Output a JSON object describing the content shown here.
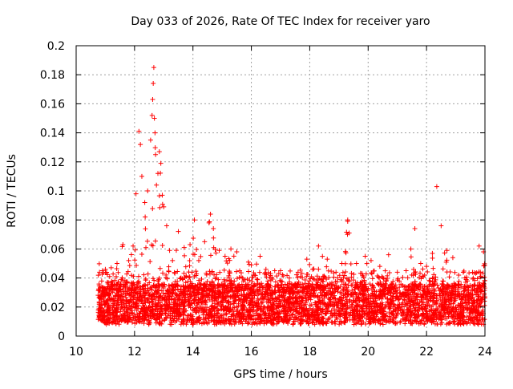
{
  "chart_data": {
    "type": "scatter",
    "title": "Day 033 of 2026, Rate Of TEC Index for receiver yaro",
    "xlabel": "GPS time / hours",
    "ylabel": "ROTI / TECUs",
    "xlim": [
      10,
      24
    ],
    "ylim": [
      0,
      0.2
    ],
    "x_ticks": [
      10,
      12,
      14,
      16,
      18,
      20,
      22,
      24
    ],
    "y_ticks": [
      0,
      0.02,
      0.04,
      0.06,
      0.08,
      0.1,
      0.12,
      0.14,
      0.16,
      0.18,
      0.2
    ],
    "x_tick_labels": [
      "10",
      "12",
      "14",
      "16",
      "18",
      "20",
      "22",
      "24"
    ],
    "y_tick_labels": [
      "0",
      "0.02",
      "0.04",
      "0.06",
      "0.08",
      "0.1",
      "0.12",
      "0.14",
      "0.16",
      "0.18",
      "0.2"
    ],
    "grid": true,
    "marker": "+",
    "color": "#ff0000",
    "data_x_range": [
      10.75,
      24.0
    ],
    "series": [
      {
        "name": "ROTI",
        "x": [
          10.8,
          10.9,
          11.0,
          11.2,
          11.4,
          11.6,
          11.8,
          11.95,
          12.05,
          12.15,
          12.2,
          12.25,
          12.35,
          12.45,
          12.55,
          12.6,
          12.62,
          12.64,
          12.66,
          12.68,
          12.7,
          12.72,
          12.75,
          12.8,
          12.85,
          12.9,
          12.95,
          13.0,
          13.1,
          13.2,
          13.3,
          13.5,
          13.7,
          13.9,
          14.05,
          14.2,
          14.4,
          14.55,
          14.6,
          14.7,
          14.9,
          15.1,
          15.3,
          15.5,
          15.7,
          15.9,
          16.0,
          16.3,
          16.5,
          16.8,
          17.0,
          17.3,
          17.6,
          17.9,
          18.1,
          18.3,
          18.6,
          18.9,
          19.1,
          19.3,
          19.35,
          19.6,
          19.9,
          20.1,
          20.4,
          20.7,
          21.0,
          21.3,
          21.6,
          21.8,
          22.0,
          22.2,
          22.35,
          22.5,
          22.7,
          22.9,
          23.1,
          23.4,
          23.6,
          23.8,
          23.95
        ],
        "y": [
          0.044,
          0.045,
          0.046,
          0.047,
          0.05,
          0.063,
          0.052,
          0.062,
          0.098,
          0.141,
          0.132,
          0.11,
          0.092,
          0.1,
          0.135,
          0.152,
          0.163,
          0.174,
          0.185,
          0.15,
          0.14,
          0.125,
          0.104,
          0.112,
          0.127,
          0.119,
          0.097,
          0.089,
          0.076,
          0.059,
          0.052,
          0.072,
          0.061,
          0.063,
          0.08,
          0.052,
          0.065,
          0.078,
          0.084,
          0.074,
          0.059,
          0.055,
          0.06,
          0.058,
          0.04,
          0.051,
          0.049,
          0.055,
          0.046,
          0.045,
          0.045,
          0.04,
          0.044,
          0.053,
          0.046,
          0.062,
          0.053,
          0.044,
          0.05,
          0.08,
          0.071,
          0.05,
          0.055,
          0.052,
          0.048,
          0.056,
          0.044,
          0.045,
          0.074,
          0.05,
          0.048,
          0.057,
          0.103,
          0.076,
          0.059,
          0.054,
          0.042,
          0.038,
          0.04,
          0.062,
          0.058
        ]
      }
    ]
  }
}
